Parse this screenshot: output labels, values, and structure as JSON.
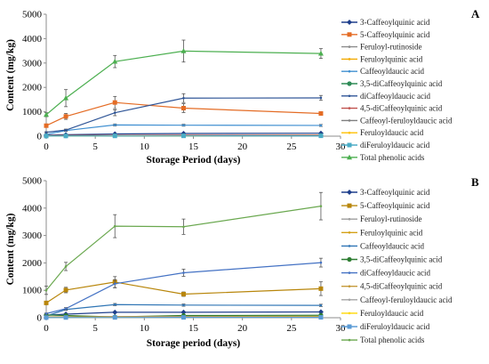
{
  "chart_data": [
    {
      "type": "line",
      "panel_label": "A",
      "xlabel": "Storage Period (days)",
      "ylabel": "Content (mg/kg)",
      "xlim": [
        0,
        30
      ],
      "ylim": [
        0,
        5000
      ],
      "xticks": [
        0,
        5,
        10,
        15,
        20,
        25,
        30
      ],
      "yticks": [
        0,
        1000,
        2000,
        3000,
        4000,
        5000
      ],
      "legend_position": "right",
      "x": [
        0,
        2,
        7,
        14,
        28
      ],
      "series": [
        {
          "name": "3-Caffeoylquinic acid",
          "color": "#1f3f8c",
          "marker": "diamond",
          "values": [
            40,
            60,
            90,
            110,
            120
          ],
          "errors": [
            5,
            8,
            10,
            12,
            12
          ]
        },
        {
          "name": "5-Caffeoylquinic acid",
          "color": "#e46c25",
          "marker": "square",
          "values": [
            430,
            810,
            1380,
            1150,
            930
          ],
          "errors": [
            40,
            120,
            250,
            180,
            60
          ]
        },
        {
          "name": "Feruloyl-rutinoside",
          "color": "#8c8c8c",
          "marker": "none",
          "values": [
            20,
            25,
            30,
            30,
            35
          ],
          "errors": [
            3,
            3,
            4,
            4,
            4
          ]
        },
        {
          "name": "Feruloylquinic acid",
          "color": "#f2a900",
          "marker": "none",
          "values": [
            15,
            20,
            25,
            30,
            30
          ],
          "errors": [
            2,
            3,
            3,
            3,
            3
          ]
        },
        {
          "name": "Caffeoyldaucic acid",
          "color": "#3f8fd1",
          "marker": "none",
          "values": [
            70,
            230,
            460,
            450,
            440
          ],
          "errors": [
            10,
            30,
            40,
            40,
            40
          ]
        },
        {
          "name": "3,5-diCaffeoylquinic acid",
          "color": "#2e8b57",
          "marker": "circle",
          "values": [
            10,
            15,
            20,
            25,
            30
          ],
          "errors": [
            2,
            2,
            3,
            3,
            3
          ]
        },
        {
          "name": "diCaffeoyldaucic acid",
          "color": "#2f5597",
          "marker": "none",
          "values": [
            160,
            250,
            960,
            1560,
            1570
          ],
          "errors": [
            20,
            40,
            120,
            180,
            100
          ]
        },
        {
          "name": "4,5-diCaffeoylquinic acid",
          "color": "#c0504d",
          "marker": "none",
          "values": [
            20,
            30,
            35,
            40,
            45
          ],
          "errors": [
            3,
            3,
            4,
            4,
            4
          ]
        },
        {
          "name": "Caffeoyl-feruloyldaucic acid",
          "color": "#7f7f7f",
          "marker": "none",
          "values": [
            10,
            15,
            20,
            20,
            25
          ],
          "errors": [
            2,
            2,
            2,
            2,
            2
          ]
        },
        {
          "name": "Feruloyldaucic acid",
          "color": "#ffc000",
          "marker": "none",
          "values": [
            5,
            10,
            15,
            15,
            20
          ],
          "errors": [
            1,
            2,
            2,
            2,
            2
          ]
        },
        {
          "name": "diFeruloyldaucic acid",
          "color": "#4bacc6",
          "marker": "square",
          "values": [
            5,
            8,
            10,
            12,
            14
          ],
          "errors": [
            1,
            1,
            1,
            1,
            1
          ]
        },
        {
          "name": "Total phenolic acids",
          "color": "#4caf50",
          "marker": "triangle",
          "values": [
            880,
            1560,
            3060,
            3490,
            3390
          ],
          "errors": [
            80,
            350,
            250,
            450,
            200
          ]
        }
      ]
    },
    {
      "type": "line",
      "panel_label": "B",
      "xlabel": "Storage period (days)",
      "ylabel": "Content (mg/kg)",
      "xlim": [
        0,
        30
      ],
      "ylim": [
        0,
        5000
      ],
      "xticks": [
        0,
        5,
        10,
        15,
        20,
        25,
        30
      ],
      "yticks": [
        0,
        1000,
        2000,
        3000,
        4000,
        5000
      ],
      "legend_position": "right",
      "x": [
        0,
        2,
        7,
        14,
        28
      ],
      "series": [
        {
          "name": "3-Caffeoylquinic acid",
          "color": "#1f3f8c",
          "marker": "diamond",
          "values": [
            90,
            130,
            200,
            200,
            210
          ],
          "errors": [
            10,
            15,
            20,
            20,
            20
          ]
        },
        {
          "name": "5-Caffeoylquinic acid",
          "color": "#b8860b",
          "marker": "square",
          "values": [
            540,
            1010,
            1300,
            860,
            1060
          ],
          "errors": [
            60,
            100,
            200,
            80,
            250
          ]
        },
        {
          "name": "Feruloyl-rutinoside",
          "color": "#9e9e9e",
          "marker": "none",
          "values": [
            30,
            35,
            40,
            40,
            45
          ],
          "errors": [
            3,
            3,
            4,
            4,
            4
          ]
        },
        {
          "name": "Feruloylquinic acid",
          "color": "#d4a017",
          "marker": "none",
          "values": [
            20,
            25,
            30,
            35,
            35
          ],
          "errors": [
            2,
            2,
            3,
            3,
            3
          ]
        },
        {
          "name": "Caffeoyldaucic acid",
          "color": "#2f75b5",
          "marker": "none",
          "values": [
            60,
            300,
            480,
            460,
            450
          ],
          "errors": [
            10,
            30,
            40,
            40,
            40
          ]
        },
        {
          "name": "3,5-diCaffeoylquinic acid",
          "color": "#2e7d32",
          "marker": "circle",
          "values": [
            100,
            80,
            30,
            80,
            90
          ],
          "errors": [
            20,
            15,
            10,
            15,
            15
          ]
        },
        {
          "name": "diCaffeoyldaucic acid",
          "color": "#4472c4",
          "marker": "none",
          "values": [
            150,
            330,
            1240,
            1640,
            2010
          ],
          "errors": [
            20,
            40,
            150,
            130,
            160
          ]
        },
        {
          "name": "4,5-diCaffeoylquinic acid",
          "color": "#c59a3a",
          "marker": "none",
          "values": [
            20,
            30,
            40,
            45,
            50
          ],
          "errors": [
            3,
            3,
            4,
            4,
            4
          ]
        },
        {
          "name": "Caffeoyl-feruloyldaucic acid",
          "color": "#a5a5a5",
          "marker": "none",
          "values": [
            10,
            15,
            20,
            25,
            25
          ],
          "errors": [
            2,
            2,
            2,
            2,
            2
          ]
        },
        {
          "name": "Feruloyldaucic acid",
          "color": "#ffd700",
          "marker": "none",
          "values": [
            5,
            10,
            15,
            15,
            20
          ],
          "errors": [
            1,
            1,
            2,
            2,
            2
          ]
        },
        {
          "name": "diFeruloyldaucic acid",
          "color": "#5b9bd5",
          "marker": "square",
          "values": [
            5,
            8,
            10,
            12,
            14
          ],
          "errors": [
            1,
            1,
            1,
            1,
            1
          ]
        },
        {
          "name": "Total phenolic acids",
          "color": "#6aa84f",
          "marker": "none",
          "values": [
            1000,
            1870,
            3340,
            3320,
            4070
          ],
          "errors": [
            150,
            150,
            420,
            280,
            500
          ]
        }
      ]
    }
  ]
}
